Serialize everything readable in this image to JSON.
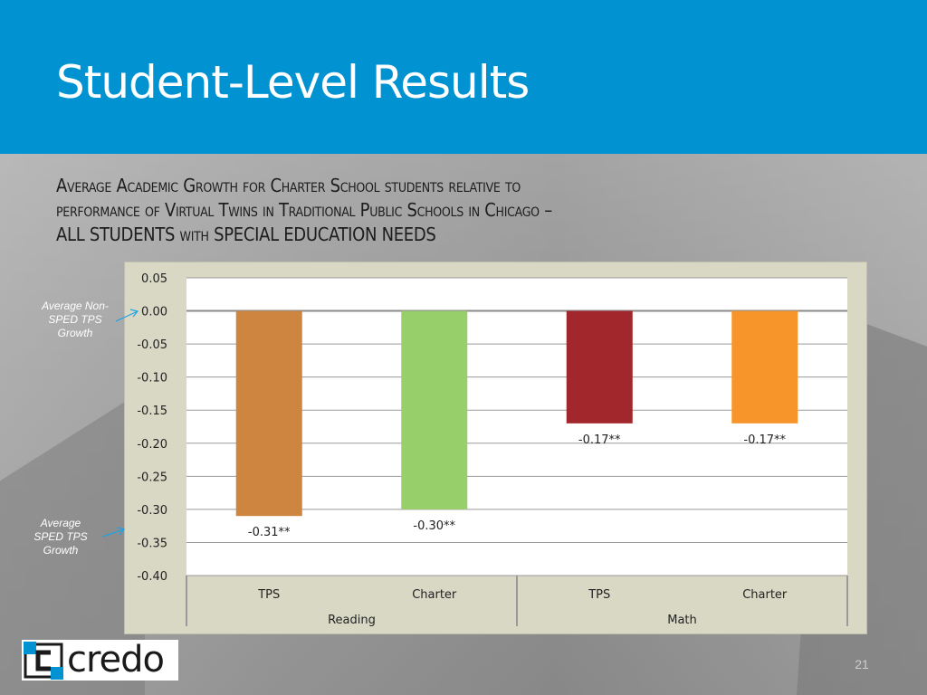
{
  "slide": {
    "title": "Student-Level Results",
    "subtitle_lines": [
      "Average Academic Growth for Charter School students relative to",
      "performance of Virtual Twins in Traditional Public Schools in Chicago –",
      "ALL STUDENTS with SPECIAL EDUCATION NEEDS"
    ],
    "annotations": {
      "non_sped": "Average Non-SPED TPS Growth",
      "sped": "Average SPED TPS Growth"
    },
    "logo_text": "credo",
    "page_number": "21",
    "colors": {
      "header": "#0193d1",
      "accent": "#0193d1"
    }
  },
  "chart_data": {
    "type": "bar",
    "title": "",
    "xlabel": "",
    "ylabel": "",
    "ylim": [
      -0.4,
      0.05
    ],
    "yticks": [
      0.05,
      0.0,
      -0.05,
      -0.1,
      -0.15,
      -0.2,
      -0.25,
      -0.3,
      -0.35,
      -0.4
    ],
    "ytick_labels": [
      "0.05",
      "0.00",
      "-0.05",
      "-0.10",
      "-0.15",
      "-0.20",
      "-0.25",
      "-0.30",
      "-0.35",
      "-0.40"
    ],
    "grid": true,
    "groups": [
      {
        "label": "Reading",
        "categories": [
          "TPS",
          "Charter"
        ]
      },
      {
        "label": "Math",
        "categories": [
          "TPS",
          "Charter"
        ]
      }
    ],
    "bars": [
      {
        "group": "Reading",
        "category": "TPS",
        "value": -0.31,
        "label": "-0.31**",
        "color": "#cd853f"
      },
      {
        "group": "Reading",
        "category": "Charter",
        "value": -0.3,
        "label": "-0.30**",
        "color": "#97d06a"
      },
      {
        "group": "Math",
        "category": "TPS",
        "value": -0.17,
        "label": "-0.17**",
        "color": "#a2272c"
      },
      {
        "group": "Math",
        "category": "Charter",
        "value": -0.17,
        "label": "-0.17**",
        "color": "#f7952b"
      }
    ]
  }
}
